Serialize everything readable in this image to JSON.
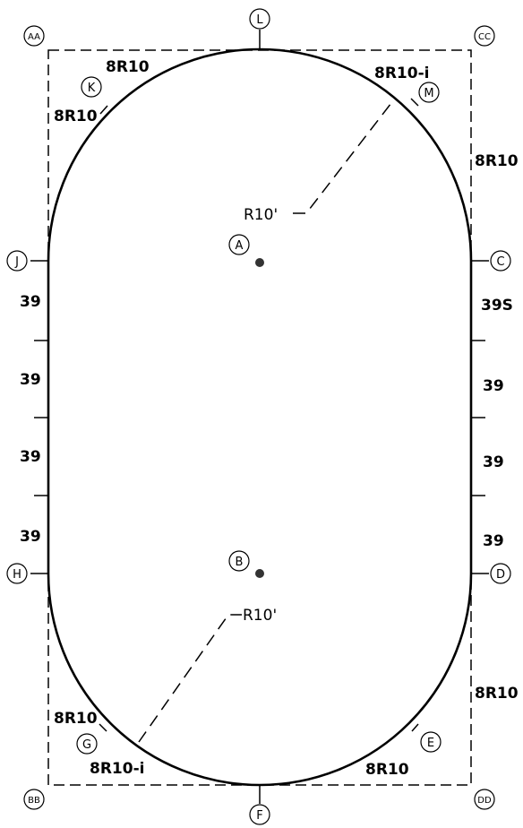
{
  "points": {
    "AA": "AA",
    "CC": "CC",
    "BB": "BB",
    "DD": "DD",
    "L": "L",
    "F": "F",
    "J": "J",
    "C": "C",
    "H": "H",
    "D": "D",
    "K": "K",
    "M": "M",
    "G": "G",
    "E": "E",
    "A": "A",
    "B": "B"
  },
  "segments": {
    "top_left_upper": "8R10",
    "top_left_lower": "8R10",
    "top_right_upper": "8R10-i",
    "top_right_side": "8R10",
    "left_1": "39",
    "left_2": "39",
    "left_3": "39",
    "left_4": "39",
    "right_1": "39S",
    "right_2": "39",
    "right_3": "39",
    "right_4": "39",
    "bottom_left_upper": "8R10",
    "bottom_left_lower": "8R10-i",
    "bottom_right_side": "8R10",
    "bottom_right_lower": "8R10"
  },
  "radii": {
    "top": "R10'",
    "bottom": "R10'"
  }
}
